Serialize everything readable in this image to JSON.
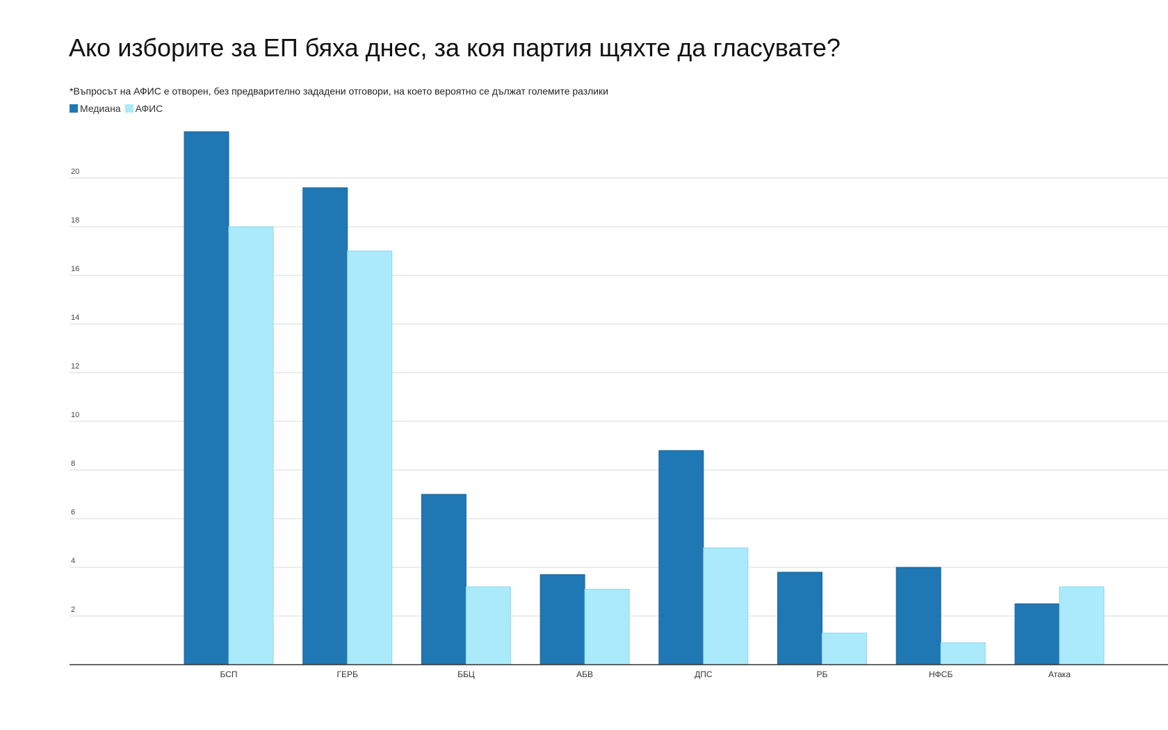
{
  "chart_data": {
    "type": "bar",
    "title": "Ако изборите за ЕП бяха днес, за коя партия щяхте да гласувате?",
    "subtitle": "*Въпросът на АФИС е отворен, без предварително зададени отговори, на което вероятно се дължат големите разлики",
    "categories": [
      "БСП",
      "ГЕРБ",
      "ББЦ",
      "АБВ",
      "ДПС",
      "РБ",
      "НФСБ",
      "Атака"
    ],
    "series": [
      {
        "name": "Медиана",
        "color": "#1f77b4",
        "values": [
          21.9,
          19.6,
          7.0,
          3.7,
          8.8,
          3.8,
          4.0,
          2.5
        ]
      },
      {
        "name": "АФИС",
        "color": "#aaeafb",
        "values": [
          18.0,
          17.0,
          3.2,
          3.1,
          4.8,
          1.3,
          0.9,
          3.2
        ]
      }
    ],
    "yticks": [
      2,
      4,
      6,
      8,
      10,
      12,
      14,
      16,
      18,
      20
    ],
    "ylim": [
      0,
      22
    ],
    "grid": true,
    "legend": "top-left",
    "xlabel": "",
    "ylabel": ""
  }
}
